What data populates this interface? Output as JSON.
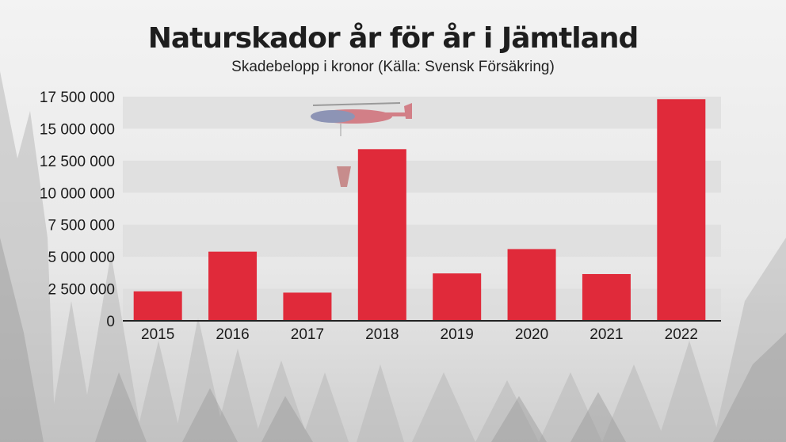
{
  "chart_data": {
    "type": "bar",
    "title": "Naturskador år för år i Jämtland",
    "subtitle": "Skadebelopp i kronor (Källa: Svensk Försäkring)",
    "categories": [
      "2015",
      "2016",
      "2017",
      "2018",
      "2019",
      "2020",
      "2021",
      "2022"
    ],
    "values": [
      2300000,
      5400000,
      2200000,
      13400000,
      3700000,
      5600000,
      3650000,
      17300000
    ],
    "ylim": [
      0,
      17500000
    ],
    "yticks": [
      0,
      2500000,
      5000000,
      7500000,
      10000000,
      12500000,
      15000000,
      17500000
    ],
    "ytick_labels": [
      "0",
      "2 500 000",
      "5 000 000",
      "7 500 000",
      "10 000 000",
      "12 500 000",
      "15 000 000",
      "17 500 000"
    ],
    "bar_color": "#e02a3a",
    "grid": true
  },
  "colors": {
    "bar": "#e02a3a",
    "band": "#dcdcdc",
    "axis": "#222222"
  }
}
